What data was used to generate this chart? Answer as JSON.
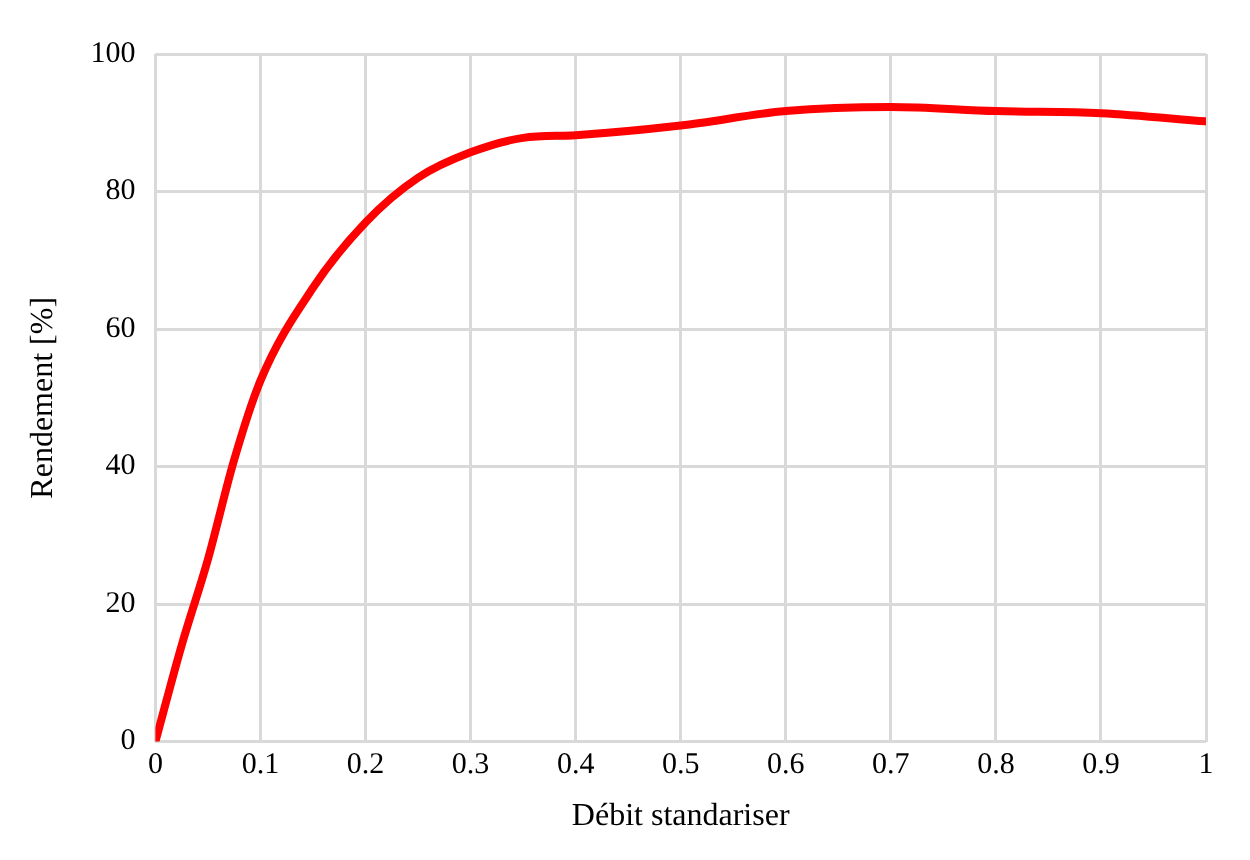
{
  "chart_data": {
    "type": "line",
    "xlabel": "Débit standariser",
    "ylabel": "Rendement [%]",
    "x": [
      0,
      0.025,
      0.05,
      0.075,
      0.1,
      0.15,
      0.2,
      0.25,
      0.3,
      0.35,
      0.4,
      0.5,
      0.6,
      0.7,
      0.8,
      0.9,
      1
    ],
    "series": [
      {
        "color": "#ff0000",
        "values": [
          0,
          14,
          26.5,
          41,
          52.5,
          66,
          75.5,
          82,
          85.7,
          87.8,
          88.2,
          89.6,
          91.7,
          92.3,
          91.7,
          91.4,
          90.2
        ]
      }
    ],
    "xlim": [
      0,
      1
    ],
    "xticks": [
      0,
      0.1,
      0.2,
      0.3,
      0.4,
      0.5,
      0.6,
      0.7,
      0.8,
      0.9,
      1
    ],
    "ylim": [
      0,
      100
    ],
    "yticks": [
      0,
      20,
      40,
      60,
      80,
      100
    ],
    "grid": true,
    "legend": false,
    "marker": "none",
    "line_style": "solid"
  }
}
